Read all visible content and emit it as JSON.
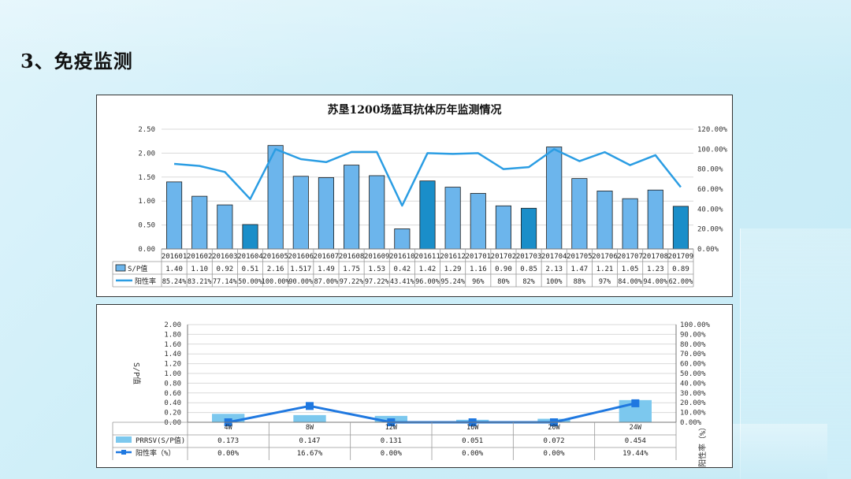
{
  "page": {
    "title": "3、免疫监测"
  },
  "chart_data": [
    {
      "type": "bar",
      "title": "苏垦1200场蓝耳抗体历年监测情况",
      "categories": [
        "201601",
        "201602",
        "201603",
        "201604",
        "201605",
        "201606",
        "201607",
        "201608",
        "201609",
        "201610",
        "201611",
        "201612",
        "201701",
        "201702",
        "201703",
        "201704",
        "201705",
        "201706",
        "201707",
        "201708",
        "201709"
      ],
      "series": [
        {
          "name": "S/P值",
          "kind": "bar",
          "axis": "left",
          "values": [
            1.4,
            1.1,
            0.92,
            0.51,
            2.16,
            1.517,
            1.49,
            1.75,
            1.53,
            0.42,
            1.42,
            1.29,
            1.16,
            0.9,
            0.85,
            2.13,
            1.47,
            1.21,
            1.05,
            1.23,
            0.89
          ],
          "labels": [
            "1.40",
            "1.10",
            "0.92",
            "0.51",
            "2.16",
            "1.517",
            "1.49",
            "1.75",
            "1.53",
            "0.42",
            "1.42",
            "1.29",
            "1.16",
            "0.90",
            "0.85",
            "2.13",
            "1.47",
            "1.21",
            "1.05",
            "1.23",
            "0.89"
          ],
          "highlight": [
            3,
            10,
            14,
            20
          ]
        },
        {
          "name": "阳性率",
          "kind": "line",
          "axis": "right",
          "values": [
            85.24,
            83.21,
            77.14,
            50.0,
            100.0,
            90.0,
            87.0,
            97.22,
            97.22,
            43.41,
            96.0,
            95.24,
            96,
            80,
            82,
            100,
            88,
            97,
            84.0,
            94.0,
            62.0
          ],
          "labels": [
            "85.24%",
            "83.21%",
            "77.14%",
            "50.00%",
            "100.00%",
            "90.00%",
            "87.00%",
            "97.22%",
            "97.22%",
            "43.41%",
            "96.00%",
            "95.24%",
            "96%",
            "80%",
            "82%",
            "100%",
            "88%",
            "97%",
            "84.00%",
            "94.00%",
            "62.00%"
          ]
        }
      ],
      "ylim": [
        0,
        2.5
      ],
      "y_ticks": [
        "0.00",
        "0.50",
        "1.00",
        "1.50",
        "2.00",
        "2.50"
      ],
      "y2lim": [
        0,
        120
      ],
      "y2_ticks": [
        "0.00%",
        "20.00%",
        "40.00%",
        "60.00%",
        "80.00%",
        "100.00%",
        "120.00%"
      ],
      "grid": true,
      "colors": {
        "bar": "#6cb5ec",
        "bar_highlight": "#1a8ec9",
        "line": "#2b9de3"
      }
    },
    {
      "type": "bar",
      "title": "",
      "categories": [
        "4W",
        "8W",
        "12W",
        "16W",
        "20W",
        "24W"
      ],
      "series": [
        {
          "name": "PRRSV(S/P值)",
          "kind": "bar",
          "axis": "left",
          "values": [
            0.173,
            0.147,
            0.131,
            0.051,
            0.072,
            0.454
          ],
          "labels": [
            "0.173",
            "0.147",
            "0.131",
            "0.051",
            "0.072",
            "0.454"
          ]
        },
        {
          "name": "阳性率（%）",
          "kind": "line",
          "axis": "right",
          "values": [
            0.0,
            16.67,
            0.0,
            0.0,
            0.0,
            19.44
          ],
          "labels": [
            "0.00%",
            "16.67%",
            "0.00%",
            "0.00%",
            "0.00%",
            "19.44%"
          ]
        }
      ],
      "ylabel": "S/P值",
      "y2label": "阳性率（%）",
      "ylim": [
        0,
        2.0
      ],
      "y_ticks": [
        "0.00",
        "0.20",
        "0.40",
        "0.60",
        "0.80",
        "1.00",
        "1.20",
        "1.40",
        "1.60",
        "1.80",
        "2.00"
      ],
      "y2lim": [
        0,
        100
      ],
      "y2_ticks": [
        "0.00%",
        "10.00%",
        "20.00%",
        "30.00%",
        "40.00%",
        "50.00%",
        "60.00%",
        "70.00%",
        "80.00%",
        "90.00%",
        "100.00%"
      ],
      "grid": true,
      "colors": {
        "bar": "#7cc8ee",
        "line": "#1f78e0"
      }
    }
  ]
}
